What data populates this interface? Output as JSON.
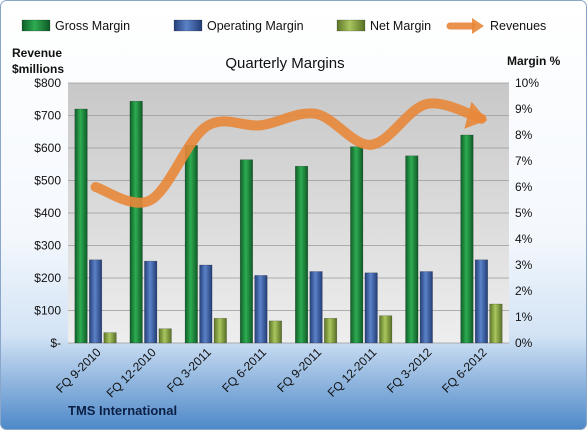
{
  "chart_data": {
    "type": "bar",
    "title": "Quarterly Margins",
    "source_label": "TMS International",
    "categories": [
      "FQ 9-2010",
      "FQ 12-2010",
      "FQ 3-2011",
      "FQ 6-2011",
      "FQ 9-2011",
      "FQ 12-2011",
      "FQ 3-2012",
      "FQ 6-2012"
    ],
    "y_left": {
      "label_line1": "Revenue",
      "label_line2": "$millions",
      "range": [
        0,
        800
      ],
      "ticks": [
        {
          "value": 0,
          "label": "$-"
        },
        {
          "value": 100,
          "label": "$100"
        },
        {
          "value": 200,
          "label": "$200"
        },
        {
          "value": 300,
          "label": "$300"
        },
        {
          "value": 400,
          "label": "$400"
        },
        {
          "value": 500,
          "label": "$500"
        },
        {
          "value": 600,
          "label": "$600"
        },
        {
          "value": 700,
          "label": "$700"
        },
        {
          "value": 800,
          "label": "$800"
        }
      ]
    },
    "y_right": {
      "label": "Margin %",
      "range": [
        0,
        10
      ],
      "ticks": [
        {
          "value": 0,
          "label": "0%"
        },
        {
          "value": 1,
          "label": "1%"
        },
        {
          "value": 2,
          "label": "2%"
        },
        {
          "value": 3,
          "label": "3%"
        },
        {
          "value": 4,
          "label": "4%"
        },
        {
          "value": 5,
          "label": "5%"
        },
        {
          "value": 6,
          "label": "6%"
        },
        {
          "value": 7,
          "label": "7%"
        },
        {
          "value": 8,
          "label": "8%"
        },
        {
          "value": 9,
          "label": "9%"
        },
        {
          "value": 10,
          "label": "10%"
        }
      ]
    },
    "series": [
      {
        "name": "Gross Margin",
        "type": "bar",
        "axis": "right",
        "color": "#1e8a3f",
        "values": [
          9.0,
          9.3,
          7.6,
          7.05,
          6.8,
          7.55,
          7.2,
          8.0
        ]
      },
      {
        "name": "Operating Margin",
        "type": "bar",
        "axis": "right",
        "color": "#3a5fa8",
        "values": [
          3.2,
          3.15,
          3.0,
          2.6,
          2.75,
          2.7,
          2.75,
          3.2
        ]
      },
      {
        "name": "Net Margin",
        "type": "bar",
        "axis": "right",
        "color": "#8aa84a",
        "values": [
          0.4,
          0.55,
          0.95,
          0.85,
          0.95,
          1.05,
          0.0,
          1.5
        ]
      },
      {
        "name": "Revenues",
        "type": "line",
        "axis": "left",
        "color": "#e8873a",
        "values": [
          480,
          440,
          665,
          670,
          705,
          610,
          735,
          690
        ]
      }
    ],
    "legend_position": "top",
    "grid": true
  }
}
